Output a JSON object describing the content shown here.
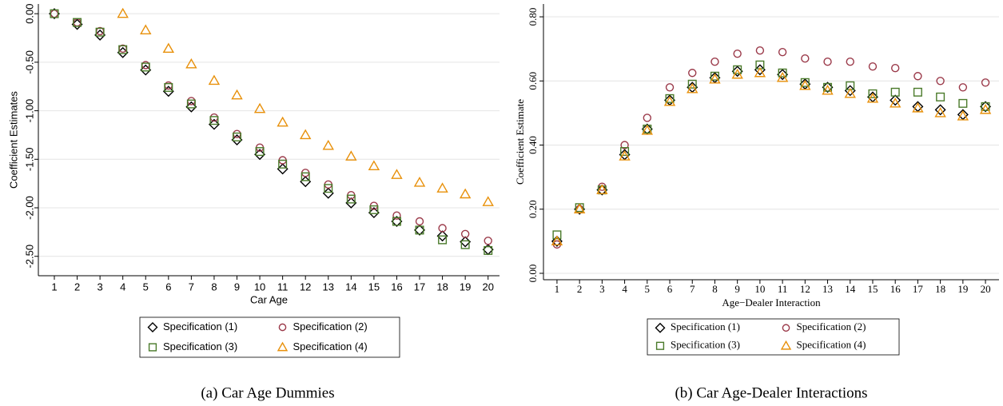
{
  "chart_data": [
    {
      "type": "scatter",
      "caption": "(a) Car Age Dummies",
      "xlabel": "Car Age",
      "ylabel": "Coefficient Estimates",
      "x": [
        1,
        2,
        3,
        4,
        5,
        6,
        7,
        8,
        9,
        10,
        11,
        12,
        13,
        14,
        15,
        16,
        17,
        18,
        19,
        20
      ],
      "xlim": [
        0.3,
        20.5
      ],
      "xticks": [
        1,
        2,
        3,
        4,
        5,
        6,
        7,
        8,
        9,
        10,
        11,
        12,
        13,
        14,
        15,
        16,
        17,
        18,
        19,
        20
      ],
      "ylim": [
        -2.7,
        0.1
      ],
      "yticks": [
        {
          "value": 0,
          "label": "0.00"
        },
        {
          "value": -0.5,
          "label": "-0.50"
        },
        {
          "value": -1,
          "label": "-1.00"
        },
        {
          "value": -1.5,
          "label": "-1.50"
        },
        {
          "value": -2,
          "label": "-2.00"
        },
        {
          "value": -2.5,
          "label": "-2.50"
        }
      ],
      "grid": true,
      "series": [
        {
          "name": "Specification (1)",
          "color": "#000000",
          "marker": "diamond",
          "values": [
            0,
            -0.11,
            -0.22,
            -0.4,
            -0.58,
            -0.8,
            -0.96,
            -1.14,
            -1.3,
            -1.45,
            -1.6,
            -1.73,
            -1.85,
            -1.95,
            -2.05,
            -2.14,
            -2.23,
            -2.29,
            -2.35,
            -2.43
          ]
        },
        {
          "name": "Specification (2)",
          "color": "#9b3a4a",
          "marker": "circle",
          "values": [
            0,
            -0.09,
            -0.18,
            -0.36,
            -0.53,
            -0.74,
            -0.9,
            -1.07,
            -1.24,
            -1.38,
            -1.51,
            -1.64,
            -1.76,
            -1.87,
            -1.98,
            -2.08,
            -2.14,
            -2.21,
            -2.27,
            -2.34
          ]
        },
        {
          "name": "Specification (3)",
          "color": "#4a7a2a",
          "marker": "square",
          "values": [
            0,
            -0.09,
            -0.19,
            -0.37,
            -0.55,
            -0.76,
            -0.93,
            -1.1,
            -1.27,
            -1.42,
            -1.55,
            -1.68,
            -1.8,
            -1.91,
            -2.02,
            -2.14,
            -2.23,
            -2.33,
            -2.38,
            -2.44
          ]
        },
        {
          "name": "Specification (4)",
          "color": "#e8900a",
          "marker": "triangle",
          "values": [
            null,
            null,
            null,
            0,
            -0.17,
            -0.36,
            -0.52,
            -0.69,
            -0.84,
            -0.98,
            -1.12,
            -1.25,
            -1.36,
            -1.47,
            -1.57,
            -1.66,
            -1.74,
            -1.8,
            -1.86,
            -1.94
          ]
        }
      ]
    },
    {
      "type": "scatter",
      "caption": "(b) Car Age-Dealer Interactions",
      "xlabel": "Age−Dealer Interaction",
      "ylabel": "Coefficient Estimate",
      "x": [
        1,
        2,
        3,
        4,
        5,
        6,
        7,
        8,
        9,
        10,
        11,
        12,
        13,
        14,
        15,
        16,
        17,
        18,
        19,
        20
      ],
      "xlim": [
        0.4,
        20.6
      ],
      "xticks": [
        1,
        2,
        3,
        4,
        5,
        6,
        7,
        8,
        9,
        10,
        11,
        12,
        13,
        14,
        15,
        16,
        17,
        18,
        19,
        20
      ],
      "ylim": [
        -0.02,
        0.84
      ],
      "yticks": [
        {
          "value": 0,
          "label": "0.00"
        },
        {
          "value": 0.2,
          "label": "0.20"
        },
        {
          "value": 0.4,
          "label": "0.40"
        },
        {
          "value": 0.6,
          "label": "0.60"
        },
        {
          "value": 0.8,
          "label": "0.80"
        }
      ],
      "grid": true,
      "series": [
        {
          "name": "Specification (1)",
          "color": "#000000",
          "marker": "diamond",
          "values": [
            0.1,
            0.2,
            0.26,
            0.37,
            0.45,
            0.54,
            0.58,
            0.61,
            0.63,
            0.635,
            0.62,
            0.59,
            0.58,
            0.57,
            0.55,
            0.54,
            0.52,
            0.51,
            0.495,
            0.52
          ]
        },
        {
          "name": "Specification (2)",
          "color": "#9b3a4a",
          "marker": "circle",
          "values": [
            0.09,
            0.2,
            0.27,
            0.4,
            0.485,
            0.58,
            0.625,
            0.66,
            0.685,
            0.695,
            0.69,
            0.67,
            0.66,
            0.66,
            0.645,
            0.64,
            0.615,
            0.6,
            0.58,
            0.595
          ]
        },
        {
          "name": "Specification (3)",
          "color": "#4a7a2a",
          "marker": "square",
          "values": [
            0.12,
            0.205,
            0.26,
            0.38,
            0.45,
            0.545,
            0.59,
            0.615,
            0.635,
            0.65,
            0.625,
            0.595,
            0.58,
            0.585,
            0.56,
            0.565,
            0.565,
            0.55,
            0.53,
            0.52
          ]
        },
        {
          "name": "Specification (4)",
          "color": "#e8900a",
          "marker": "triangle",
          "values": [
            0.1,
            0.2,
            0.26,
            0.365,
            0.445,
            0.535,
            0.575,
            0.605,
            0.62,
            0.625,
            0.61,
            0.585,
            0.57,
            0.56,
            0.545,
            0.53,
            0.515,
            0.5,
            0.49,
            0.51
          ]
        }
      ]
    }
  ]
}
